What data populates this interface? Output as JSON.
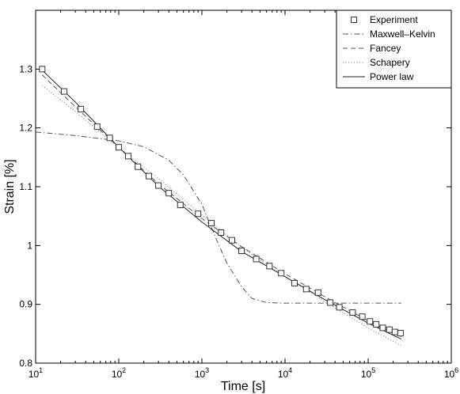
{
  "chart_data": {
    "type": "scatter",
    "xlabel": "Time [s]",
    "ylabel": "Strain [%]",
    "xscale": "log",
    "xlim": [
      10,
      1000000
    ],
    "ylim": [
      0.8,
      1.4
    ],
    "x_ticks": [
      {
        "value": 10,
        "base": "10",
        "exp": "1"
      },
      {
        "value": 100,
        "base": "10",
        "exp": "2"
      },
      {
        "value": 1000,
        "base": "10",
        "exp": "3"
      },
      {
        "value": 10000,
        "base": "10",
        "exp": "4"
      },
      {
        "value": 100000,
        "base": "10",
        "exp": "5"
      },
      {
        "value": 1000000,
        "base": "10",
        "exp": "6"
      }
    ],
    "y_ticks": [
      {
        "value": 0.8,
        "label": "0.8"
      },
      {
        "value": 0.9,
        "label": "0.9"
      },
      {
        "value": 1.0,
        "label": "1"
      },
      {
        "value": 1.1,
        "label": "1.1"
      },
      {
        "value": 1.2,
        "label": "1.2"
      },
      {
        "value": 1.3,
        "label": "1.3"
      }
    ],
    "grid": false,
    "legend_position": "top-right",
    "series": [
      {
        "name": "Experiment",
        "style": "markers-square",
        "x": [
          12,
          22,
          35,
          55,
          78,
          100,
          130,
          170,
          230,
          300,
          400,
          550,
          900,
          1300,
          1700,
          2300,
          3000,
          4500,
          6500,
          9000,
          13000,
          18000,
          25000,
          35000,
          45000,
          65000,
          85000,
          105000,
          125000,
          150000,
          180000,
          210000,
          245000
        ],
        "y": [
          1.3,
          1.262,
          1.232,
          1.202,
          1.183,
          1.167,
          1.152,
          1.134,
          1.118,
          1.102,
          1.089,
          1.069,
          1.054,
          1.038,
          1.022,
          1.009,
          0.991,
          0.977,
          0.965,
          0.953,
          0.936,
          0.926,
          0.92,
          0.903,
          0.895,
          0.886,
          0.879,
          0.871,
          0.866,
          0.86,
          0.857,
          0.853,
          0.851
        ]
      },
      {
        "name": "Maxwell–Kelvin",
        "style": "dash-dot",
        "x": [
          10,
          30,
          100,
          200,
          400,
          600,
          1000,
          1500,
          2000,
          3000,
          4000,
          6000,
          10000,
          20000,
          100000,
          250000
        ],
        "y": [
          1.193,
          1.187,
          1.178,
          1.168,
          1.145,
          1.12,
          1.07,
          1.01,
          0.97,
          0.93,
          0.91,
          0.903,
          0.902,
          0.902,
          0.902,
          0.902
        ]
      },
      {
        "name": "Fancey",
        "style": "dashed",
        "x": [
          12,
          30,
          100,
          300,
          1000,
          3000,
          10000,
          30000,
          100000,
          250000
        ],
        "y": [
          1.29,
          1.236,
          1.167,
          1.105,
          1.046,
          0.998,
          0.952,
          0.913,
          0.872,
          0.845
        ]
      },
      {
        "name": "Schapery",
        "style": "dotted",
        "x": [
          12,
          30,
          100,
          300,
          1000,
          3000,
          10000,
          30000,
          100000,
          250000
        ],
        "y": [
          1.272,
          1.228,
          1.166,
          1.114,
          1.052,
          0.997,
          0.947,
          0.905,
          0.86,
          0.83
        ]
      },
      {
        "name": "Power law",
        "style": "solid",
        "x": [
          12,
          30,
          100,
          300,
          1000,
          3000,
          10000,
          30000,
          100000,
          250000
        ],
        "y": [
          1.298,
          1.244,
          1.167,
          1.101,
          1.04,
          0.99,
          0.947,
          0.908,
          0.868,
          0.841
        ]
      }
    ]
  }
}
